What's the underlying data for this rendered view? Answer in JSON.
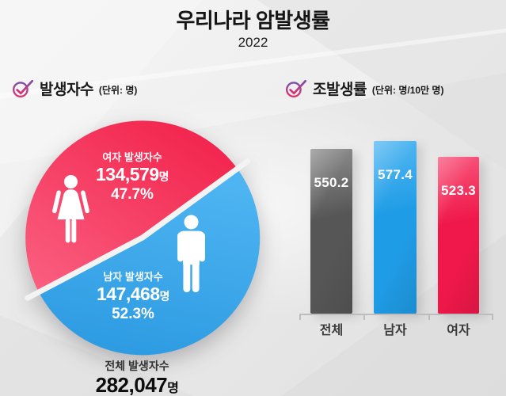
{
  "page": {
    "background": "#E9E9E9"
  },
  "header": {
    "title": "우리나라 암발생률",
    "subtitle": "2022"
  },
  "accent": {
    "check_top": "#7C4FA5",
    "check_bottom": "#E0316F",
    "axis_color": "#BDBDBD",
    "text_dark": "#1A1A1A"
  },
  "chart_data": [
    {
      "type": "pie",
      "title": "발생자수",
      "unit": "(단위: 명)",
      "total": {
        "label": "전체 발생자수",
        "value": 282047,
        "display": "282,047",
        "suffix": "명"
      },
      "slices": [
        {
          "label": "여자 발생자수",
          "value": 134579,
          "display": "134,579",
          "suffix": "명",
          "percent": 47.7,
          "percent_display": "47.7%",
          "color_top": "#F2224B",
          "color_bottom": "#FA5F80",
          "icon": "female-icon"
        },
        {
          "label": "남자 발생자수",
          "value": 147468,
          "display": "147,468",
          "suffix": "명",
          "percent": 52.3,
          "percent_display": "52.3%",
          "color_top": "#4FB5F2",
          "color_bottom": "#2D9BE2",
          "icon": "male-icon"
        }
      ],
      "legend": "none"
    },
    {
      "type": "bar",
      "title": "조발생률",
      "unit": "(단위: 명/10만 명)",
      "categories": [
        "전체",
        "남자",
        "여자"
      ],
      "values": [
        550.2,
        577.4,
        523.3
      ],
      "ylim": [
        0,
        620
      ],
      "grid": "off",
      "bars": [
        {
          "label": "전체",
          "value": 550.2,
          "display": "550.2",
          "color": "#565656",
          "color_light": "#8F8F8F"
        },
        {
          "label": "남자",
          "value": 577.4,
          "display": "577.4",
          "color": "#1F9CE6",
          "color_light": "#55B8F2"
        },
        {
          "label": "여자",
          "value": 523.3,
          "display": "523.3",
          "color": "#F0184A",
          "color_light": "#F8567C"
        }
      ]
    }
  ]
}
